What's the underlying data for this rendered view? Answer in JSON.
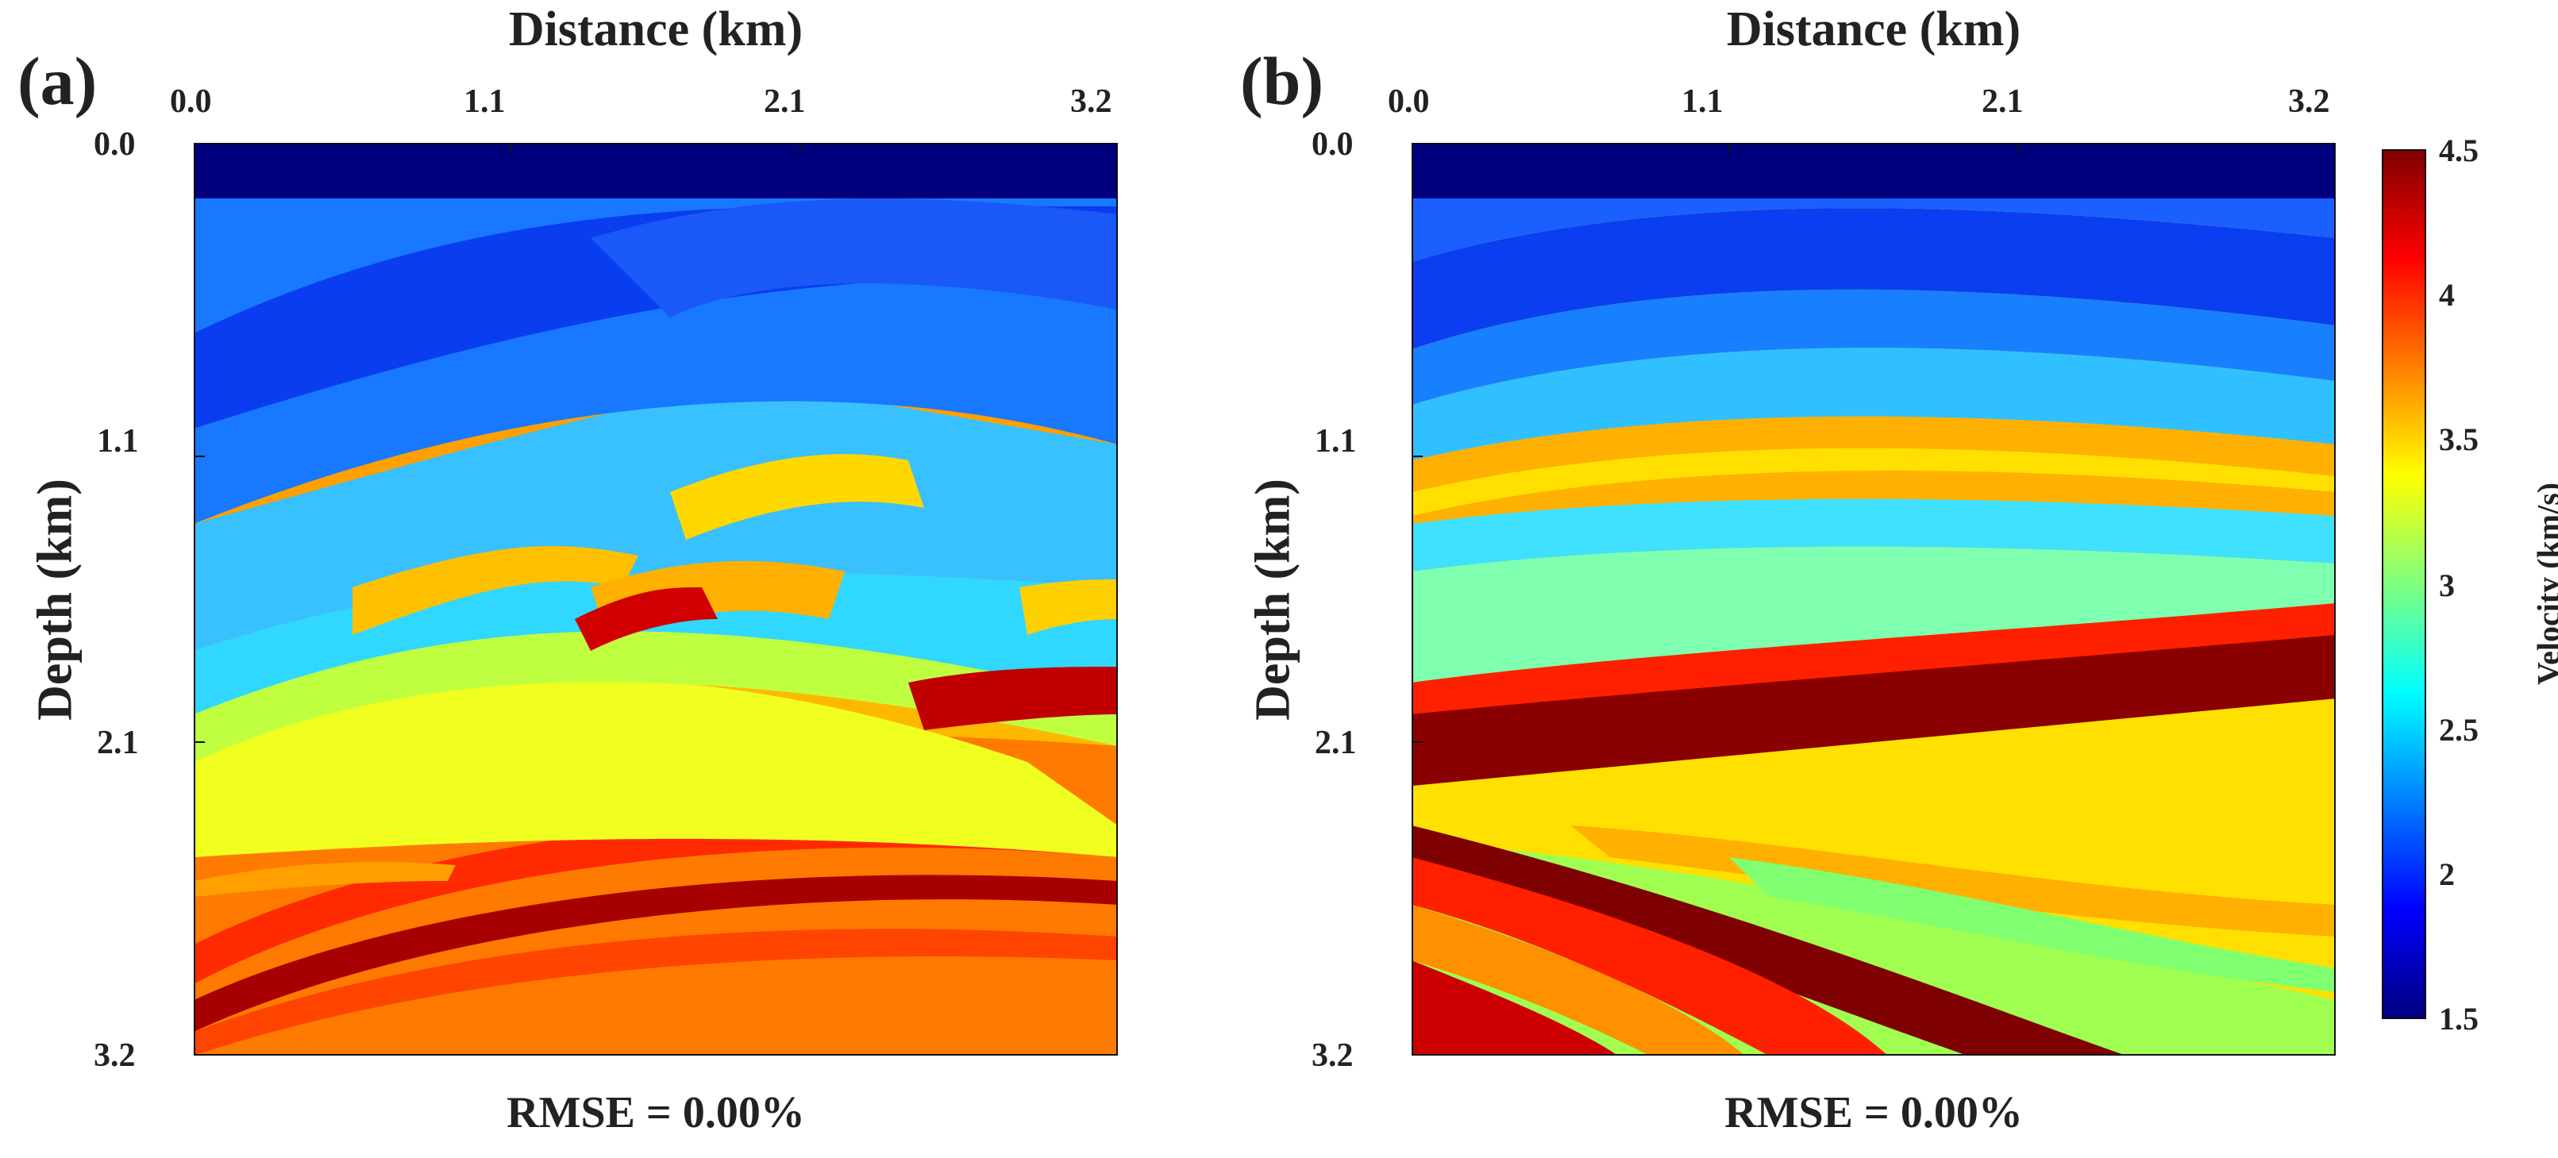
{
  "panels": [
    {
      "label": "(a)",
      "x_axis_title": "Distance (km)",
      "y_axis_title": "Depth (km)",
      "x_ticks": [
        "0.0",
        "1.1",
        "2.1",
        "3.2"
      ],
      "y_ticks": [
        "0.0",
        "1.1",
        "2.1",
        "3.2"
      ],
      "rmse_text": "RMSE = 0.00%"
    },
    {
      "label": "(b)",
      "x_axis_title": "Distance (km)",
      "y_axis_title": "Depth (km)",
      "x_ticks": [
        "0.0",
        "1.1",
        "2.1",
        "3.2"
      ],
      "y_ticks": [
        "0.0",
        "1.1",
        "2.1",
        "3.2"
      ],
      "rmse_text": "RMSE = 0.00%"
    }
  ],
  "colorbar": {
    "title": "Velocity (km/s)",
    "ticks": [
      "4.5",
      "4",
      "3.5",
      "3",
      "2.5",
      "2",
      "1.5"
    ],
    "range": [
      1.5,
      4.5
    ],
    "colormap": [
      "#00007f",
      "#0000ff",
      "#007fff",
      "#00ffff",
      "#7fff7f",
      "#ffff00",
      "#ff7f00",
      "#ff0000",
      "#7f0000"
    ]
  },
  "chart_data": [
    {
      "type": "heatmap",
      "title": "(a)",
      "xlabel": "Distance (km)",
      "ylabel": "Depth (km)",
      "xlim": [
        0.0,
        3.2
      ],
      "ylim": [
        3.2,
        0.0
      ],
      "x_ticks": [
        0.0,
        1.1,
        2.1,
        3.2
      ],
      "y_ticks": [
        0.0,
        1.1,
        2.1,
        3.2
      ],
      "value_range_km_s": [
        1.5,
        4.5
      ],
      "water_layer": {
        "depth_top": 0.0,
        "depth_bottom": 0.2,
        "velocity": 1.5
      },
      "description_layers": [
        {
          "depth": 0.5,
          "velocity": 2.0
        },
        {
          "depth": 1.0,
          "velocity": 2.4
        },
        {
          "depth": 1.4,
          "velocity": 2.7
        },
        {
          "depth": 1.8,
          "velocity": 2.6
        },
        {
          "depth": 2.2,
          "velocity": 3.4
        },
        {
          "depth": 2.6,
          "velocity": 3.9
        },
        {
          "depth": 3.0,
          "velocity": 4.3
        }
      ],
      "rmse": "0.00%"
    },
    {
      "type": "heatmap",
      "title": "(b)",
      "xlabel": "Distance (km)",
      "ylabel": "Depth (km)",
      "xlim": [
        0.0,
        3.2
      ],
      "ylim": [
        3.2,
        0.0
      ],
      "x_ticks": [
        0.0,
        1.1,
        2.1,
        3.2
      ],
      "y_ticks": [
        0.0,
        1.1,
        2.1,
        3.2
      ],
      "value_range_km_s": [
        1.5,
        4.5
      ],
      "water_layer": {
        "depth_top": 0.0,
        "depth_bottom": 0.2,
        "velocity": 1.5
      },
      "description_layers": [
        {
          "depth": 0.5,
          "velocity": 1.9
        },
        {
          "depth": 0.9,
          "velocity": 2.2
        },
        {
          "depth": 1.3,
          "velocity": 3.6
        },
        {
          "depth": 1.7,
          "velocity": 2.8
        },
        {
          "depth": 2.1,
          "velocity": 4.5
        },
        {
          "depth": 2.6,
          "velocity": 3.7
        },
        {
          "depth": 3.0,
          "velocity": 3.9
        }
      ],
      "rmse": "0.00%"
    }
  ]
}
